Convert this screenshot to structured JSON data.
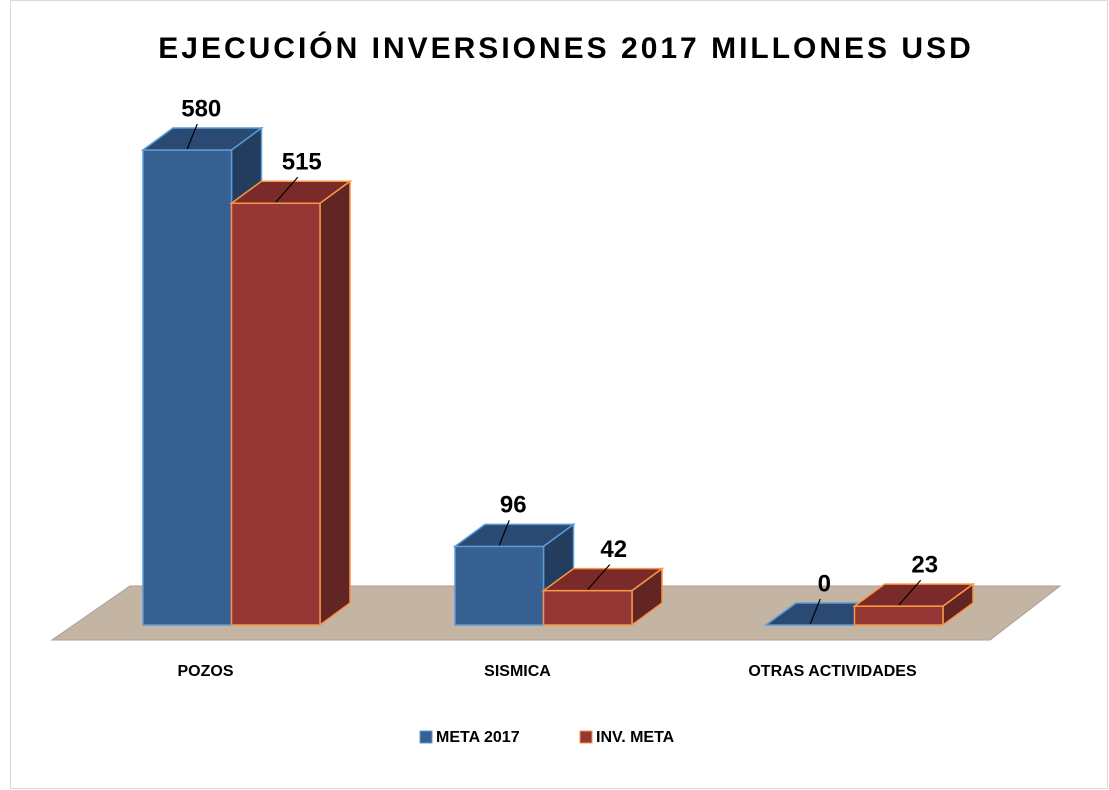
{
  "chart_data": {
    "type": "bar3d",
    "title": "EJECUCIÓN INVERSIONES 2017 MILLONES USD",
    "categories": [
      "POZOS",
      "SISMICA",
      "OTRAS ACTIVIDADES"
    ],
    "series": [
      {
        "name": "META 2017",
        "color": "#376092",
        "values": [
          580,
          96,
          0
        ]
      },
      {
        "name": "INV. META",
        "color": "#953735",
        "values": [
          515,
          42,
          23
        ]
      }
    ],
    "ylim": [
      0,
      600
    ]
  }
}
